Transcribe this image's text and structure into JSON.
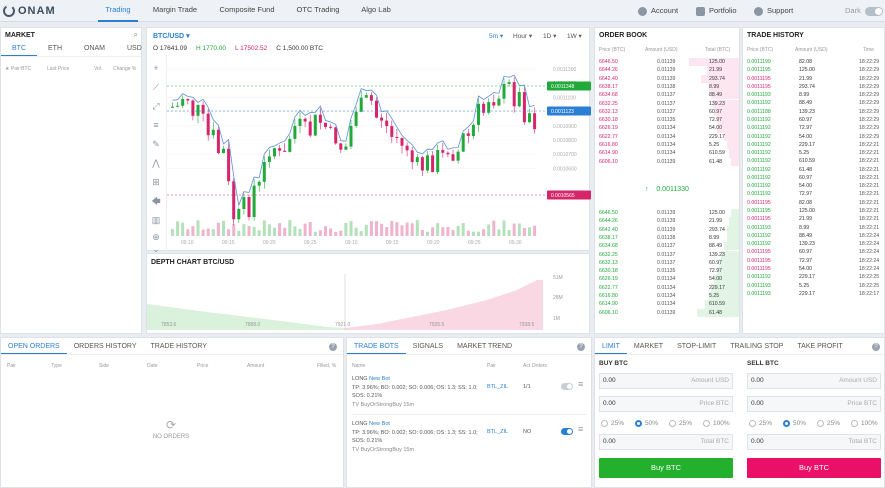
{
  "app": {
    "logo": "ONAM"
  },
  "nav": {
    "items": [
      "Trading",
      "Margin Trade",
      "Composite Fund",
      "OTC Trading",
      "Algo Lab"
    ],
    "active": "Trading",
    "right": [
      "Account",
      "Portfolio",
      "Support"
    ],
    "theme_label": "Dark"
  },
  "market": {
    "title": "MARKET",
    "tabs": [
      "BTC",
      "ETH",
      "ONAM",
      "USD"
    ],
    "active": "BTC",
    "columns": [
      "Pair:BTC",
      "Last Price",
      "Vol.",
      "Change %"
    ]
  },
  "chart": {
    "pair": "BTC/USD",
    "timeframes": [
      "5m",
      "Hour",
      "1D",
      "1W"
    ],
    "ohlc": {
      "o": "O 17641.09",
      "h": "H 1770.00",
      "l": "L 17502.52",
      "c": "C 1,500.00 BTC"
    },
    "price_ticks": [
      "0.0011300",
      "0.0011200",
      "0.0011100",
      "0.0011000",
      "0.0010900",
      "0.0010800",
      "0.0010700",
      "0.0010600"
    ],
    "time_ticks": [
      "09:10",
      "09:15",
      "09:20",
      "09:25",
      "09:10",
      "09:15",
      "09:20",
      "09:25",
      "09:30"
    ],
    "price_tags": [
      "0.0011348",
      "0.0011123",
      "0.0010565"
    ],
    "colors": {
      "up": "#21a93a",
      "down": "#d6256b",
      "line": "#5b8fd9"
    }
  },
  "depth": {
    "title": "DEPTH CHART  BTC/USD",
    "x_ticks": [
      "7853.6",
      "7888.0",
      "7921.0",
      "7935.5",
      "7938.5"
    ],
    "y_ticks": [
      "51M",
      "28M",
      "1M"
    ]
  },
  "orderbook": {
    "title": "ORDER BOOK",
    "columns": [
      "Price (BTC)",
      "Amount (USD)",
      "Total (BTC)"
    ],
    "asks": [
      [
        "6646.50",
        "0.01139",
        "125.00"
      ],
      [
        "6644.26",
        "0.01139",
        "21.99"
      ],
      [
        "6642.40",
        "0.01139",
        "293.74"
      ],
      [
        "6638.17",
        "0.01138",
        "8.99"
      ],
      [
        "6634.68",
        "0.01137",
        "88.49"
      ],
      [
        "6632.25",
        "0.01137",
        "139.23"
      ],
      [
        "6632.13",
        "0.01137",
        "60.97"
      ],
      [
        "6630.18",
        "0.01135",
        "72.97"
      ],
      [
        "6626.19",
        "0.01134",
        "54.00"
      ],
      [
        "6622.77",
        "0.01134",
        "229.17"
      ],
      [
        "6616.80",
        "0.01134",
        "5.25"
      ],
      [
        "6614.90",
        "0.01134",
        "610.59"
      ],
      [
        "6606.10",
        "0.01139",
        "61.48"
      ]
    ],
    "mid": "0.0011330",
    "bids": [
      [
        "6646.50",
        "0.01139",
        "125.00"
      ],
      [
        "6644.26",
        "0.01139",
        "21.99"
      ],
      [
        "6642.40",
        "0.01139",
        "293.74"
      ],
      [
        "6638.17",
        "0.01138",
        "8.99"
      ],
      [
        "6634.68",
        "0.01137",
        "88.49"
      ],
      [
        "6632.25",
        "0.01137",
        "139.23"
      ],
      [
        "6632.13",
        "0.01137",
        "60.97"
      ],
      [
        "6630.18",
        "0.01135",
        "72.97"
      ],
      [
        "6626.19",
        "0.01134",
        "54.00"
      ],
      [
        "6622.77",
        "0.01134",
        "229.17"
      ],
      [
        "6616.80",
        "0.01134",
        "5.25"
      ],
      [
        "6614.90",
        "0.01134",
        "610.59"
      ],
      [
        "6606.10",
        "0.01139",
        "61.48"
      ]
    ]
  },
  "tradehistory": {
    "title": "TRADE HISTORY",
    "columns": [
      "Price (BTC)",
      "Amount (USD)",
      "Time"
    ],
    "rows": [
      [
        "0.0011199",
        "82.08",
        "18:22:29",
        "g"
      ],
      [
        "0.0011195",
        "125.00",
        "18:22:29",
        "g"
      ],
      [
        "0.0011195",
        "21.99",
        "18:22:29",
        "r"
      ],
      [
        "0.0011195",
        "293.74",
        "18:22:29",
        "r"
      ],
      [
        "0.0011193",
        "8.99",
        "18:22:29",
        "g"
      ],
      [
        "0.0011192",
        "88.49",
        "18:22:29",
        "g"
      ],
      [
        "0.0011188",
        "139.23",
        "18:22:29",
        "g"
      ],
      [
        "0.0011192",
        "60.97",
        "18:22:29",
        "g"
      ],
      [
        "0.0011192",
        "72.97",
        "18:22:29",
        "g"
      ],
      [
        "0.0011192",
        "54.00",
        "18:22:29",
        "g"
      ],
      [
        "0.0011192",
        "229.17",
        "18:22:21",
        "g"
      ],
      [
        "0.0011192",
        "5.25",
        "18:22:21",
        "g"
      ],
      [
        "0.0011192",
        "610.59",
        "18:22:21",
        "g"
      ],
      [
        "0.0011192",
        "61.48",
        "18:22:21",
        "g"
      ],
      [
        "0.0011192",
        "60.97",
        "18:22:21",
        "g"
      ],
      [
        "0.0011192",
        "54.00",
        "18:22:21",
        "g"
      ],
      [
        "0.0011192",
        "72.97",
        "18:22:21",
        "g"
      ],
      [
        "0.0011195",
        "82.08",
        "18:22:21",
        "r"
      ],
      [
        "0.0011195",
        "125.00",
        "18:22:21",
        "g"
      ],
      [
        "0.0011195",
        "21.99",
        "18:22:21",
        "r"
      ],
      [
        "0.0011193",
        "8.99",
        "18:22:21",
        "g"
      ],
      [
        "0.0011192",
        "88.49",
        "18:22:24",
        "g"
      ],
      [
        "0.0011192",
        "139.23",
        "18:22:24",
        "g"
      ],
      [
        "0.0011195",
        "60.97",
        "18:22:24",
        "r"
      ],
      [
        "0.0011195",
        "72.97",
        "18:22:24",
        "r"
      ],
      [
        "0.0011195",
        "54.00",
        "18:22:24",
        "r"
      ],
      [
        "0.0011192",
        "229.17",
        "18:22:25",
        "g"
      ],
      [
        "0.0011193",
        "5.25",
        "18:22:25",
        "g"
      ],
      [
        "0.0011193",
        "229.17",
        "18:22:17",
        "g"
      ]
    ]
  },
  "orders": {
    "tabs": [
      "OPEN ORDERS",
      "ORDERS HISTORY",
      "TRADE HISTORY"
    ],
    "active": "OPEN ORDERS",
    "columns": [
      "Pair",
      "Type",
      "Side",
      "Date",
      "Price",
      "Amount",
      "Filled, %"
    ],
    "empty": "NO ORDERS"
  },
  "bots": {
    "tabs": [
      "TRADE BOTS",
      "SIGNALS",
      "MARKET TREND"
    ],
    "active": "TRADE BOTS",
    "columns": [
      "Name",
      "Pair",
      "Act.Orders"
    ],
    "items": [
      {
        "side": "LONG",
        "name": "New Bot",
        "params": "TP: 3.96%; BO: 0.002; SO: 0.006; OS: 1.3; SS: 1.0;",
        "sos": "SOS: 0.21%",
        "sig": "TV BuyOrStrongBuy 15m",
        "pair": "BTL_ZIL",
        "orders": "1/1"
      },
      {
        "side": "LONG",
        "name": "New Bot",
        "params": "TP: 3.96%; BO: 0.002; SO: 0.006; OS: 1.3; SS: 1.0;",
        "sos": "SOS: 0.21%",
        "sig": "TV BuyOrStrongBuy 15m",
        "pair": "BTL_ZIL",
        "orders": "NO"
      }
    ]
  },
  "trade": {
    "tabs": [
      "LIMIT",
      "MARKET",
      "STOP-LIMIT",
      "TRAILING STOP",
      "TAKE PROFIT"
    ],
    "active": "LIMIT",
    "buy": {
      "title": "BUY BTC",
      "amount": "0.00",
      "amount_ph": "Amount USD",
      "price": "0.00",
      "price_ph": "Price BTC",
      "total": "0.00",
      "total_ph": "Total BTC",
      "pcts": [
        "25%",
        "50%",
        "25%",
        "100%"
      ],
      "button": "Buy BTC"
    },
    "sell": {
      "title": "SELL BTC",
      "amount": "0.00",
      "amount_ph": "Amount USD",
      "price": "0.00",
      "price_ph": "Price BTC",
      "total": "0.00",
      "total_ph": "Total BTC",
      "pcts": [
        "25%",
        "50%",
        "25%",
        "100%"
      ],
      "button": "Buy BTC"
    },
    "colors": {
      "buy": "#22b02d",
      "sell": "#ea1068"
    }
  }
}
